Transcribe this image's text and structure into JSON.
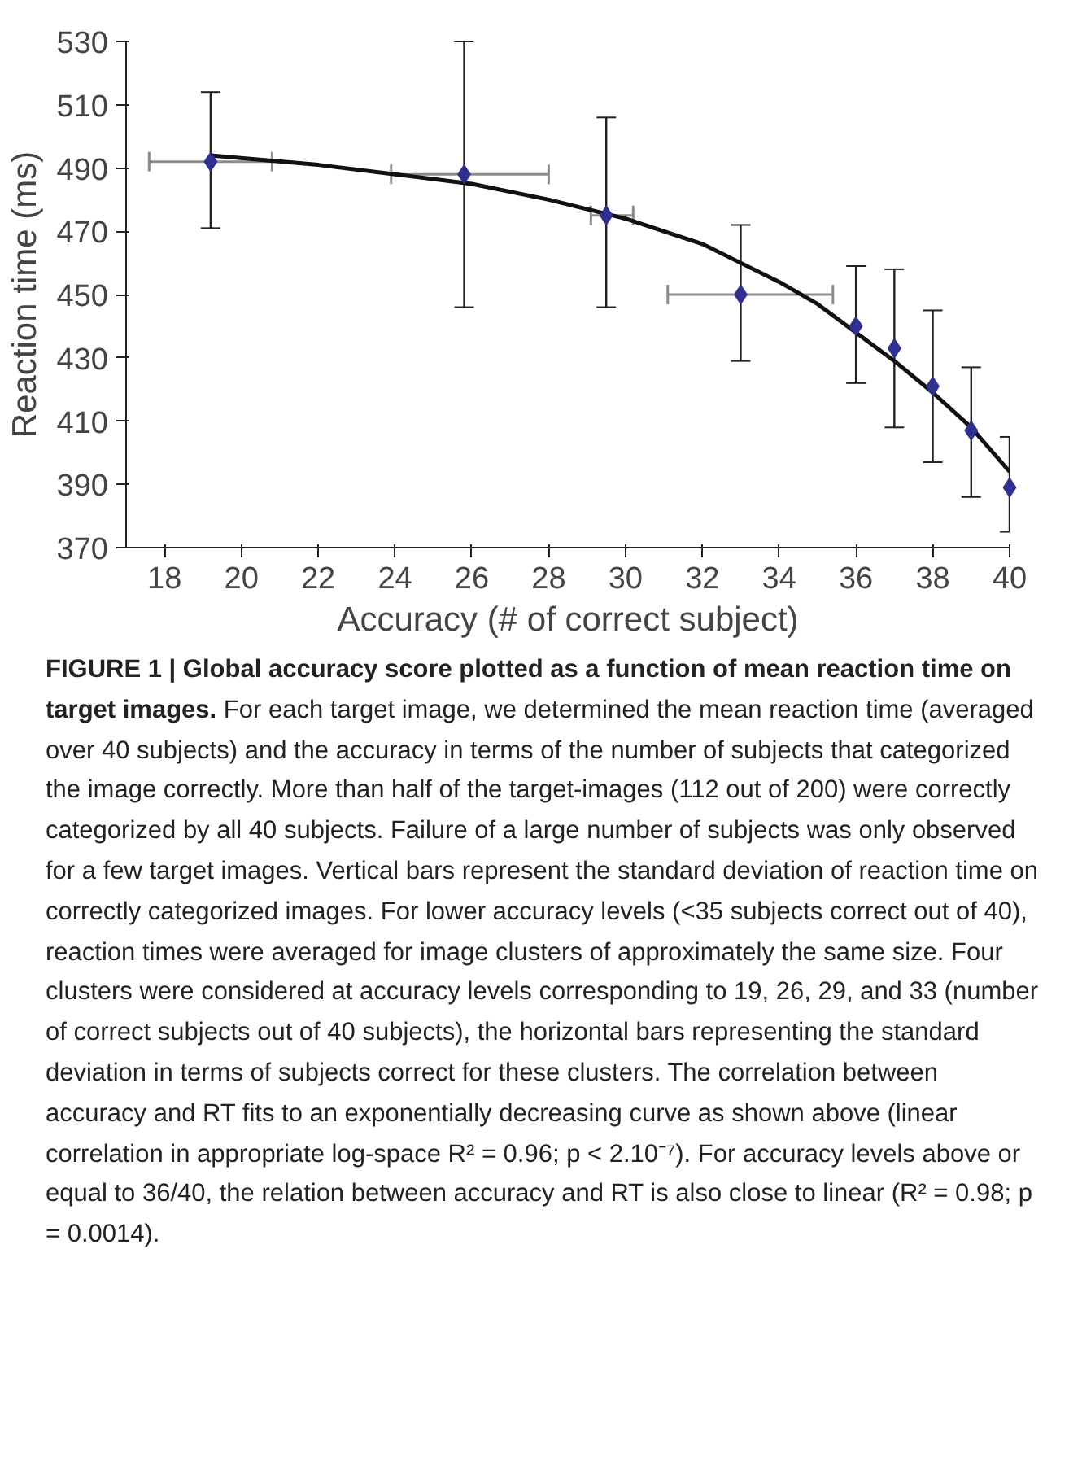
{
  "chart_data": {
    "type": "scatter",
    "title": "FIGURE 1 | Global accuracy score plotted as a function of mean reaction time on target images.",
    "xlabel": "Accuracy (# of correct subject)",
    "ylabel": "Reaction time (ms)",
    "xlim": [
      17,
      40
    ],
    "xticks": [
      18,
      20,
      22,
      24,
      26,
      28,
      30,
      32,
      34,
      36,
      38,
      40
    ],
    "ylim": [
      370,
      530
    ],
    "yticks": [
      370,
      390,
      410,
      430,
      450,
      470,
      490,
      510,
      530
    ],
    "grid": false,
    "marker": "diamond",
    "series": [
      {
        "color": "#2e3192",
        "x": [
          19.2,
          25.8,
          29.5,
          33,
          36,
          37,
          38,
          39,
          40
        ],
        "values": [
          492,
          488,
          475,
          450,
          440,
          433,
          421,
          407,
          389
        ],
        "errors": [
          [
            471,
            514
          ],
          [
            446,
            530
          ],
          [
            446,
            506
          ],
          [
            429,
            472
          ],
          [
            422,
            459
          ],
          [
            408,
            458
          ],
          [
            397,
            445
          ],
          [
            386,
            427
          ],
          [
            375,
            405
          ]
        ],
        "xerrors": [
          [
            17.6,
            20.8
          ],
          [
            23.9,
            28.0
          ],
          [
            29.1,
            30.2
          ],
          [
            31.1,
            35.4
          ],
          null,
          null,
          null,
          null,
          null
        ]
      },
      {
        "type": "line",
        "color": "#111111",
        "marker": "none",
        "x": [
          19.2,
          22,
          24,
          26,
          28,
          30,
          32,
          33,
          34,
          35,
          36,
          37,
          38,
          39,
          40
        ],
        "values": [
          494,
          491,
          488,
          485,
          480,
          474,
          466,
          460,
          454,
          447,
          438,
          429,
          419,
          408,
          394
        ]
      }
    ],
    "annotations": [
      "For each target image, we determined the mean reaction time (averaged over 40 subjects) and the accuracy in terms of the number of subjects that categorized the image correctly. More than half of the target-images (112 out of 200) were correctly categorized by all 40 subjects. Failure of a large number of subjects was only observed for a few target images. Vertical bars represent the standard deviation of reaction time on correctly categorized images. For lower accuracy levels (<35 subjects correct out of 40), reaction times were averaged for image clusters of approximately the same size. Four clusters were considered at accuracy levels corresponding to 19, 26, 29, and 33 (number of correct subjects out of 40 subjects), the horizontal bars representing the standard deviation in terms of subjects correct for these clusters. The correlation between accuracy and RT fits to an exponentially decreasing curve as shown above (linear correlation in appropriate log-space R² = 0.96; p < 2.10⁻⁷). For accuracy levels above or equal to 36/40, the relation between accuracy and RT is also close to linear (R² = 0.98; p = 0.0014)."
    ]
  }
}
